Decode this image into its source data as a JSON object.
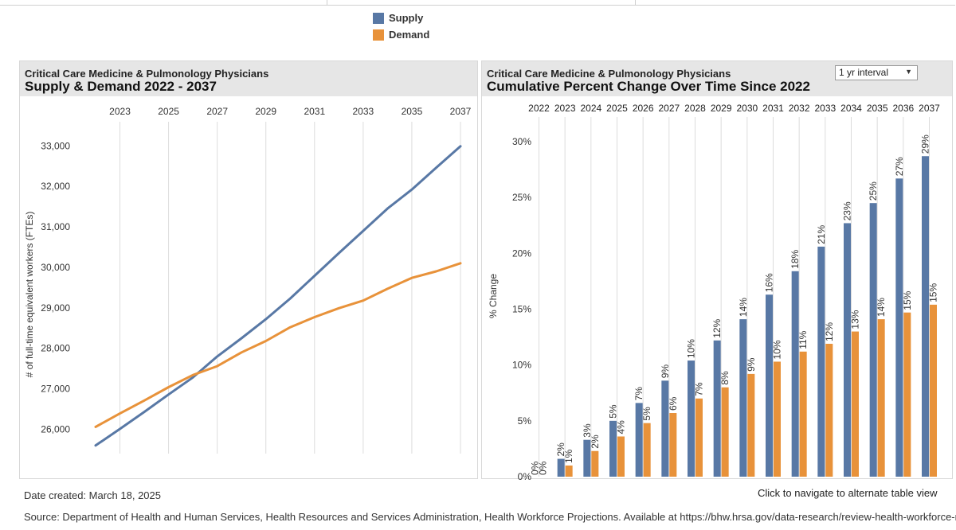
{
  "legend": {
    "supply": "Supply",
    "demand": "Demand"
  },
  "colors": {
    "supply": "#5878a5",
    "demand": "#e8923a",
    "grid": "#dcdcdc",
    "header": "#e6e6e6"
  },
  "left": {
    "title_line1": "Critical Care Medicine & Pulmonology Physicians",
    "title_line2": "Supply & Demand 2022 - 2037"
  },
  "right": {
    "title_line1": "Critical Care Medicine & Pulmonology Physicians",
    "title_line2": "Cumulative Percent Change Over Time Since 2022",
    "dropdown_value": "1 yr interval"
  },
  "footer": {
    "date": "Date created: March 18, 2025",
    "nav": "Click to navigate to alternate table view",
    "source": "Source: Department of Health and Human Services, Health Resources and Services Administration, Health Workforce Projections. Available at https://bhw.hrsa.gov/data-research/review-health-workforce-research"
  },
  "chart_data": [
    {
      "type": "line",
      "title": "Supply & Demand 2022 - 2037",
      "xlabel": "",
      "ylabel": "# of full-time equivalent workers (FTEs)",
      "x": [
        2022,
        2023,
        2024,
        2025,
        2026,
        2027,
        2028,
        2029,
        2030,
        2031,
        2032,
        2033,
        2034,
        2035,
        2036,
        2037
      ],
      "x_tick_labels": [
        "2023",
        "2025",
        "2027",
        "2029",
        "2031",
        "2033",
        "2035",
        "2037"
      ],
      "y_tick_labels": [
        "26,000",
        "27,000",
        "28,000",
        "29,000",
        "30,000",
        "31,000",
        "32,000",
        "33,000"
      ],
      "ylim": [
        25400,
        33300
      ],
      "series": [
        {
          "name": "Supply",
          "values": [
            25600,
            26010,
            26430,
            26860,
            27280,
            27800,
            28250,
            28720,
            29230,
            29790,
            30350,
            30900,
            31450,
            31920,
            32460,
            32990
          ]
        },
        {
          "name": "Demand",
          "values": [
            26060,
            26390,
            26710,
            27040,
            27340,
            27560,
            27900,
            28180,
            28520,
            28770,
            28990,
            29180,
            29470,
            29740,
            29900,
            30100
          ]
        }
      ]
    },
    {
      "type": "bar",
      "title": "Cumulative Percent Change Over Time Since 2022",
      "ylabel": "% Change",
      "categories": [
        "2022",
        "2023",
        "2024",
        "2025",
        "2026",
        "2027",
        "2028",
        "2029",
        "2030",
        "2031",
        "2032",
        "2033",
        "2034",
        "2035",
        "2036",
        "2037"
      ],
      "y_tick_labels": [
        "0%",
        "5%",
        "10%",
        "15%",
        "20%",
        "25%",
        "30%"
      ],
      "ylim": [
        0,
        31.5
      ],
      "series": [
        {
          "name": "Supply",
          "values": [
            0,
            1.6,
            3.3,
            5.0,
            6.6,
            8.6,
            10.4,
            12.2,
            14.1,
            16.3,
            18.4,
            20.6,
            22.7,
            24.5,
            26.7,
            28.7
          ],
          "labels": [
            "0%",
            "2%",
            "3%",
            "5%",
            "7%",
            "9%",
            "10%",
            "12%",
            "14%",
            "16%",
            "18%",
            "21%",
            "23%",
            "25%",
            "27%",
            "29%"
          ]
        },
        {
          "name": "Demand",
          "values": [
            0,
            1.0,
            2.3,
            3.6,
            4.8,
            5.7,
            7.0,
            8.0,
            9.2,
            10.3,
            11.2,
            11.9,
            13.0,
            14.1,
            14.7,
            15.4
          ],
          "labels": [
            "0%",
            "1%",
            "2%",
            "4%",
            "5%",
            "6%",
            "7%",
            "8%",
            "9%",
            "10%",
            "11%",
            "12%",
            "13%",
            "14%",
            "15%",
            "15%"
          ]
        }
      ]
    }
  ]
}
